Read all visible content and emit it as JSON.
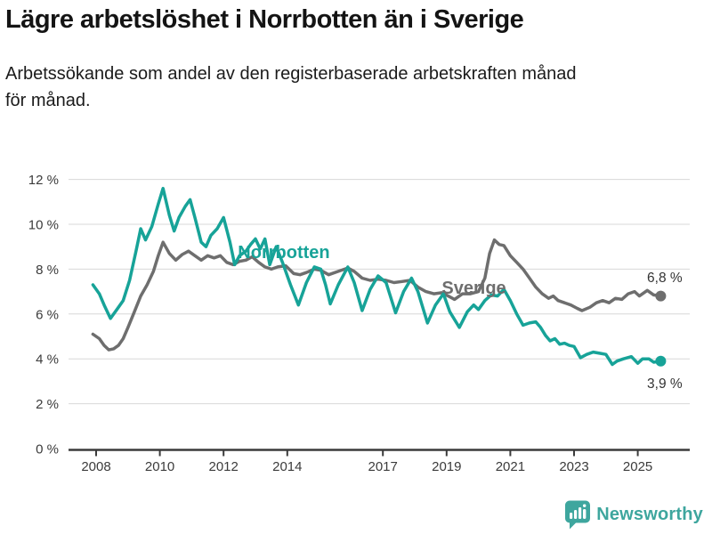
{
  "header": {
    "title": "Lägre arbetslöshet i Norrbotten än i Sverige",
    "subtitle_line1": "Arbetssökande som andel av den registerbaserade arbetskraften månad",
    "subtitle_line2": "för månad."
  },
  "footer": {
    "brand": "Newsworthy",
    "brand_color": "#3ea69e"
  },
  "chart_data": {
    "type": "line",
    "title": "Lägre arbetslöshet i Norrbotten än i Sverige",
    "ylabel": "",
    "xlabel": "",
    "unit": "%",
    "grid": true,
    "legend_position": "inline-labels",
    "colors": {
      "norrbotten": "#17a398",
      "sverige": "#6e6e6e",
      "gridline": "#d8d8d8",
      "axis": "#3b3b3b"
    },
    "y_axis": {
      "range": [
        0,
        12
      ],
      "tick_values": [
        12,
        10,
        8,
        6,
        4,
        2,
        0
      ],
      "tick_labels": [
        "12 %",
        "10 %",
        "8 %",
        "6 %",
        "4 %",
        "2 %",
        "0 %"
      ]
    },
    "x_axis": {
      "range": [
        2007.9,
        2026.3
      ],
      "tick_values": [
        2008,
        2010,
        2012,
        2014,
        2017,
        2019,
        2021,
        2023,
        2025
      ],
      "tick_labels": [
        "2008",
        "2010",
        "2012",
        "2014",
        "2017",
        "2019",
        "2021",
        "2023",
        "2025"
      ]
    },
    "series": [
      {
        "name": "Sverige",
        "color": "#6e6e6e",
        "end_value_label": "6,8 %",
        "points": [
          [
            2007.9,
            5.1
          ],
          [
            2008.1,
            4.9
          ],
          [
            2008.25,
            4.6
          ],
          [
            2008.4,
            4.4
          ],
          [
            2008.55,
            4.45
          ],
          [
            2008.7,
            4.6
          ],
          [
            2008.85,
            4.9
          ],
          [
            2009.0,
            5.4
          ],
          [
            2009.2,
            6.1
          ],
          [
            2009.4,
            6.8
          ],
          [
            2009.6,
            7.3
          ],
          [
            2009.8,
            7.9
          ],
          [
            2009.95,
            8.6
          ],
          [
            2010.1,
            9.2
          ],
          [
            2010.3,
            8.7
          ],
          [
            2010.5,
            8.4
          ],
          [
            2010.7,
            8.65
          ],
          [
            2010.9,
            8.8
          ],
          [
            2011.1,
            8.6
          ],
          [
            2011.3,
            8.4
          ],
          [
            2011.5,
            8.6
          ],
          [
            2011.7,
            8.5
          ],
          [
            2011.9,
            8.6
          ],
          [
            2012.1,
            8.3
          ],
          [
            2012.3,
            8.2
          ],
          [
            2012.5,
            8.35
          ],
          [
            2012.7,
            8.4
          ],
          [
            2012.9,
            8.55
          ],
          [
            2013.1,
            8.3
          ],
          [
            2013.3,
            8.1
          ],
          [
            2013.5,
            8.0
          ],
          [
            2013.7,
            8.1
          ],
          [
            2013.95,
            8.15
          ],
          [
            2014.2,
            7.8
          ],
          [
            2014.4,
            7.75
          ],
          [
            2014.6,
            7.85
          ],
          [
            2014.85,
            8.0
          ],
          [
            2015.05,
            7.95
          ],
          [
            2015.3,
            7.75
          ],
          [
            2015.6,
            7.9
          ],
          [
            2015.9,
            8.05
          ],
          [
            2016.1,
            7.9
          ],
          [
            2016.35,
            7.6
          ],
          [
            2016.6,
            7.5
          ],
          [
            2016.85,
            7.55
          ],
          [
            2017.1,
            7.5
          ],
          [
            2017.35,
            7.4
          ],
          [
            2017.6,
            7.45
          ],
          [
            2017.85,
            7.5
          ],
          [
            2018.1,
            7.2
          ],
          [
            2018.35,
            7.0
          ],
          [
            2018.6,
            6.9
          ],
          [
            2018.85,
            6.95
          ],
          [
            2019.05,
            6.8
          ],
          [
            2019.25,
            6.65
          ],
          [
            2019.5,
            6.9
          ],
          [
            2019.75,
            6.9
          ],
          [
            2020.0,
            7.0
          ],
          [
            2020.2,
            7.6
          ],
          [
            2020.35,
            8.7
          ],
          [
            2020.5,
            9.3
          ],
          [
            2020.65,
            9.1
          ],
          [
            2020.8,
            9.05
          ],
          [
            2021.0,
            8.6
          ],
          [
            2021.2,
            8.3
          ],
          [
            2021.4,
            8.0
          ],
          [
            2021.6,
            7.6
          ],
          [
            2021.8,
            7.2
          ],
          [
            2022.0,
            6.9
          ],
          [
            2022.2,
            6.7
          ],
          [
            2022.35,
            6.8
          ],
          [
            2022.5,
            6.6
          ],
          [
            2022.7,
            6.5
          ],
          [
            2022.9,
            6.4
          ],
          [
            2023.1,
            6.25
          ],
          [
            2023.25,
            6.15
          ],
          [
            2023.5,
            6.3
          ],
          [
            2023.7,
            6.5
          ],
          [
            2023.9,
            6.6
          ],
          [
            2024.1,
            6.5
          ],
          [
            2024.3,
            6.7
          ],
          [
            2024.5,
            6.65
          ],
          [
            2024.7,
            6.9
          ],
          [
            2024.9,
            7.0
          ],
          [
            2025.05,
            6.8
          ],
          [
            2025.3,
            7.05
          ],
          [
            2025.5,
            6.85
          ],
          [
            2025.72,
            6.8
          ]
        ]
      },
      {
        "name": "Norrbotten",
        "color": "#17a398",
        "end_value_label": "3,9 %",
        "points": [
          [
            2007.9,
            7.3
          ],
          [
            2008.1,
            6.9
          ],
          [
            2008.25,
            6.4
          ],
          [
            2008.45,
            5.8
          ],
          [
            2008.65,
            6.2
          ],
          [
            2008.85,
            6.6
          ],
          [
            2009.05,
            7.5
          ],
          [
            2009.25,
            8.8
          ],
          [
            2009.4,
            9.8
          ],
          [
            2009.55,
            9.3
          ],
          [
            2009.75,
            9.9
          ],
          [
            2009.95,
            10.9
          ],
          [
            2010.1,
            11.6
          ],
          [
            2010.3,
            10.4
          ],
          [
            2010.45,
            9.7
          ],
          [
            2010.6,
            10.3
          ],
          [
            2010.8,
            10.8
          ],
          [
            2010.95,
            11.1
          ],
          [
            2011.1,
            10.3
          ],
          [
            2011.3,
            9.2
          ],
          [
            2011.45,
            9.0
          ],
          [
            2011.6,
            9.5
          ],
          [
            2011.8,
            9.8
          ],
          [
            2012.0,
            10.3
          ],
          [
            2012.2,
            9.2
          ],
          [
            2012.35,
            8.2
          ],
          [
            2012.5,
            8.6
          ],
          [
            2012.7,
            8.8
          ],
          [
            2012.85,
            9.1
          ],
          [
            2013.0,
            9.35
          ],
          [
            2013.15,
            8.9
          ],
          [
            2013.3,
            9.35
          ],
          [
            2013.45,
            8.2
          ],
          [
            2013.65,
            9.0
          ],
          [
            2013.85,
            8.3
          ],
          [
            2014.1,
            7.3
          ],
          [
            2014.35,
            6.4
          ],
          [
            2014.6,
            7.4
          ],
          [
            2014.85,
            8.1
          ],
          [
            2015.05,
            8.0
          ],
          [
            2015.2,
            7.3
          ],
          [
            2015.35,
            6.45
          ],
          [
            2015.6,
            7.3
          ],
          [
            2015.9,
            8.1
          ],
          [
            2016.1,
            7.4
          ],
          [
            2016.35,
            6.15
          ],
          [
            2016.6,
            7.1
          ],
          [
            2016.85,
            7.7
          ],
          [
            2017.1,
            7.4
          ],
          [
            2017.4,
            6.05
          ],
          [
            2017.65,
            7.0
          ],
          [
            2017.9,
            7.6
          ],
          [
            2018.1,
            7.0
          ],
          [
            2018.4,
            5.6
          ],
          [
            2018.65,
            6.4
          ],
          [
            2018.9,
            6.9
          ],
          [
            2019.1,
            6.1
          ],
          [
            2019.4,
            5.4
          ],
          [
            2019.65,
            6.1
          ],
          [
            2019.85,
            6.4
          ],
          [
            2020.0,
            6.2
          ],
          [
            2020.2,
            6.6
          ],
          [
            2020.4,
            6.85
          ],
          [
            2020.6,
            6.8
          ],
          [
            2020.8,
            7.1
          ],
          [
            2021.0,
            6.6
          ],
          [
            2021.2,
            6.0
          ],
          [
            2021.4,
            5.5
          ],
          [
            2021.6,
            5.6
          ],
          [
            2021.8,
            5.65
          ],
          [
            2021.95,
            5.4
          ],
          [
            2022.1,
            5.05
          ],
          [
            2022.25,
            4.8
          ],
          [
            2022.4,
            4.9
          ],
          [
            2022.55,
            4.65
          ],
          [
            2022.7,
            4.7
          ],
          [
            2022.85,
            4.6
          ],
          [
            2023.0,
            4.55
          ],
          [
            2023.2,
            4.05
          ],
          [
            2023.4,
            4.2
          ],
          [
            2023.6,
            4.3
          ],
          [
            2023.8,
            4.25
          ],
          [
            2024.0,
            4.2
          ],
          [
            2024.2,
            3.75
          ],
          [
            2024.35,
            3.9
          ],
          [
            2024.55,
            4.0
          ],
          [
            2024.8,
            4.1
          ],
          [
            2025.0,
            3.8
          ],
          [
            2025.15,
            4.0
          ],
          [
            2025.35,
            4.0
          ],
          [
            2025.5,
            3.85
          ],
          [
            2025.72,
            3.9
          ]
        ]
      }
    ],
    "annotations": [
      {
        "text": "Norrbotten",
        "x": 2012.45,
        "y": 8.5,
        "anchor": "start",
        "color": "#17a398",
        "size": 20,
        "bold": true
      },
      {
        "text": "Sverige",
        "x": 2018.85,
        "y": 6.9,
        "anchor": "start",
        "color": "#6e6e6e",
        "size": 20,
        "bold": true
      },
      {
        "text": "6,8 %",
        "x": 2026.4,
        "y": 7.42,
        "anchor": "end",
        "color": "#333333",
        "size": 15.5,
        "bold": false
      },
      {
        "text": "3,9 %",
        "x": 2026.4,
        "y": 2.7,
        "anchor": "end",
        "color": "#333333",
        "size": 15.5,
        "bold": false
      }
    ]
  }
}
